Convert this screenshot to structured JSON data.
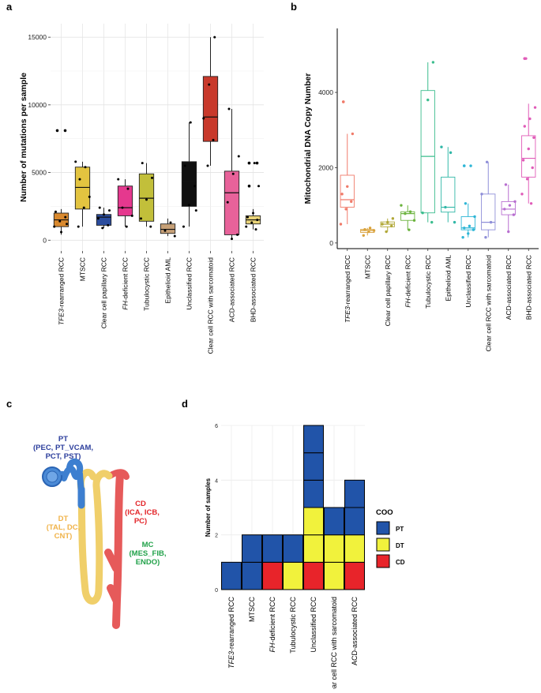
{
  "panel_labels": [
    "a",
    "b",
    "c",
    "d"
  ],
  "kidney": {
    "colors": {
      "PT": "#3d7fd0",
      "DT": "#f0cf6a",
      "CD": "#e65a5a",
      "PT_text": "#2c3e9c",
      "DT_text": "#f0b34a",
      "CD_text": "#e3262a",
      "MC_text": "#22a24a"
    },
    "labels": {
      "pt_title": "PT",
      "pt_line1": "(PEC, PT_VCAM,",
      "pt_line2": "PCT, PST)",
      "cd_title": "CD",
      "cd_line1": "(ICA, ICB,",
      "cd_line2": "PC)",
      "dt_title": "DT",
      "dt_line1": "(TAL, DC,",
      "dt_line2": "CNT)",
      "mc_title": "MC",
      "mc_line1": "(MES_FIB,",
      "mc_line2": "ENDO)"
    }
  },
  "chart_data": [
    {
      "id": "a",
      "type": "box",
      "ylabel": "Number of mutations per sample",
      "ylim": [
        -800,
        16000
      ],
      "yticks": [
        0,
        5000,
        10000,
        15000
      ],
      "grid": true,
      "categories": [
        {
          "pre": "TFE3",
          "rest": "-rearranged RCC"
        },
        {
          "pre": "",
          "rest": "MTSCC"
        },
        {
          "pre": "",
          "rest": "Clear cell papillary RCC"
        },
        {
          "pre": "FH",
          "rest": "-deficient RCC"
        },
        {
          "pre": "",
          "rest": "Tubulocystic RCC"
        },
        {
          "pre": "",
          "rest": "Epithelioid AML"
        },
        {
          "pre": "",
          "rest": "Unclassified RCC"
        },
        {
          "pre": "",
          "rest": "Clear cell RCC with sarcomatoid"
        },
        {
          "pre": "",
          "rest": "ACD-associated RCC"
        },
        {
          "pre": "",
          "rest": "BHD-associated RCC"
        }
      ],
      "colors": [
        "#d9892e",
        "#e3c440",
        "#2b4d9e",
        "#e5388e",
        "#c2bf3a",
        "#c7a178",
        "#101010",
        "#c8392b",
        "#e8629a",
        "#e8d378"
      ],
      "boxes": [
        {
          "whislo": 400,
          "q1": 1000,
          "med": 1500,
          "q3": 2000,
          "whishi": 2300,
          "outliers": [
            8100,
            8100
          ]
        },
        {
          "whislo": 1000,
          "q1": 2300,
          "med": 3900,
          "q3": 5400,
          "whishi": 5800,
          "outliers": []
        },
        {
          "whislo": 900,
          "q1": 1100,
          "med": 1700,
          "q3": 1900,
          "whishi": 2400,
          "outliers": []
        },
        {
          "whislo": 1000,
          "q1": 1800,
          "med": 2400,
          "q3": 4000,
          "whishi": 4500,
          "outliers": []
        },
        {
          "whislo": 1000,
          "q1": 1400,
          "med": 3100,
          "q3": 4900,
          "whishi": 5700,
          "outliers": []
        },
        {
          "whislo": 300,
          "q1": 500,
          "med": 800,
          "q3": 1200,
          "whishi": 1600,
          "outliers": []
        },
        {
          "whislo": 1000,
          "q1": 2500,
          "med": 4300,
          "q3": 5800,
          "whishi": 8700,
          "outliers": []
        },
        {
          "whislo": 5500,
          "q1": 7300,
          "med": 9100,
          "q3": 12100,
          "whishi": 15000,
          "outliers": []
        },
        {
          "whislo": 100,
          "q1": 400,
          "med": 3500,
          "q3": 5100,
          "whishi": 9700,
          "outliers": []
        },
        {
          "whislo": 800,
          "q1": 1200,
          "med": 1500,
          "q3": 1800,
          "whishi": 2300,
          "outliers": [
            5700,
            5700,
            4000
          ]
        }
      ],
      "points": [
        [
          1000,
          1400,
          1700,
          2100,
          600,
          1200
        ],
        [
          1000,
          2400,
          3200,
          4500,
          5400,
          5800
        ],
        [
          900,
          1100,
          1600,
          1900,
          2200,
          2400
        ],
        [
          1000,
          1800,
          2400,
          3800,
          4500
        ],
        [
          1000,
          1600,
          3000,
          4600,
          5700
        ],
        [
          300,
          700,
          1300
        ],
        [
          1000,
          2600,
          4000,
          5500,
          8700,
          2200
        ],
        [
          5500,
          7400,
          9000,
          11500,
          15000
        ],
        [
          100,
          400,
          2800,
          4900,
          6200,
          9700
        ],
        [
          800,
          1000,
          1300,
          1500,
          1700,
          2000,
          4000,
          5700,
          5700
        ]
      ]
    },
    {
      "id": "b",
      "type": "box",
      "ylabel": "Mitochondrial DNA Copy Number",
      "ylim": [
        -150,
        5700
      ],
      "yticks": [
        0,
        2000,
        4000
      ],
      "grid": false,
      "categories": [
        {
          "pre": "TFE3",
          "rest": "-rearranged RCC"
        },
        {
          "pre": "",
          "rest": "MTSCC"
        },
        {
          "pre": "",
          "rest": "Clear cell papillary RCC"
        },
        {
          "pre": "FH",
          "rest": "-deficient RCC"
        },
        {
          "pre": "",
          "rest": "Tubulocystic RCC"
        },
        {
          "pre": "",
          "rest": "Epithelioid AML"
        },
        {
          "pre": "",
          "rest": "Unclassified RCC"
        },
        {
          "pre": "",
          "rest": "Clear cell RCC with sarcomatoid"
        },
        {
          "pre": "",
          "rest": "ACD-associated RCC"
        },
        {
          "pre": "",
          "rest": "BHD-associated RCC"
        }
      ],
      "colors": [
        "#f07b6a",
        "#d9a23c",
        "#b1a838",
        "#6bb33d",
        "#3cbd8e",
        "#32b8a8",
        "#2fb6d6",
        "#8f8fd8",
        "#b86fd0",
        "#e05cb8"
      ],
      "boxes": [
        {
          "whislo": 500,
          "q1": 950,
          "med": 1150,
          "q3": 1800,
          "whishi": 2900,
          "outliers": [
            3750
          ]
        },
        {
          "whislo": 200,
          "q1": 280,
          "med": 330,
          "q3": 360,
          "whishi": 400,
          "outliers": []
        },
        {
          "whislo": 300,
          "q1": 430,
          "med": 500,
          "q3": 560,
          "whishi": 650,
          "outliers": []
        },
        {
          "whislo": 350,
          "q1": 600,
          "med": 780,
          "q3": 830,
          "whishi": 1000,
          "outliers": []
        },
        {
          "whislo": 550,
          "q1": 800,
          "med": 2300,
          "q3": 4050,
          "whishi": 4800,
          "outliers": []
        },
        {
          "whislo": 550,
          "q1": 820,
          "med": 950,
          "q3": 1750,
          "whishi": 2550,
          "outliers": []
        },
        {
          "whislo": 150,
          "q1": 350,
          "med": 400,
          "q3": 700,
          "whishi": 1050,
          "outliers": [
            2050
          ]
        },
        {
          "whislo": 150,
          "q1": 350,
          "med": 550,
          "q3": 1300,
          "whishi": 2150,
          "outliers": []
        },
        {
          "whislo": 300,
          "q1": 750,
          "med": 900,
          "q3": 1100,
          "whishi": 1550,
          "outliers": []
        },
        {
          "whislo": 1050,
          "q1": 1750,
          "med": 2250,
          "q3": 2850,
          "whishi": 3700,
          "outliers": [
            4900
          ]
        }
      ],
      "points": [
        [
          500,
          900,
          1100,
          1300,
          1500,
          2900,
          3750
        ],
        [
          200,
          300,
          330,
          360,
          400
        ],
        [
          300,
          450,
          500,
          550,
          650
        ],
        [
          350,
          600,
          780,
          830,
          1000
        ],
        [
          550,
          800,
          3800,
          4800
        ],
        [
          550,
          950,
          2400,
          2550
        ],
        [
          150,
          250,
          350,
          400,
          450,
          700,
          1050,
          2050
        ],
        [
          150,
          550,
          1300,
          2150
        ],
        [
          300,
          750,
          900,
          1000,
          1100,
          1550
        ],
        [
          1050,
          1300,
          1700,
          2000,
          2200,
          2500,
          2800,
          3100,
          3300,
          3600,
          4900
        ]
      ]
    },
    {
      "id": "d",
      "type": "stacked_tile",
      "ylabel": "Number of samples",
      "ylim": [
        0,
        6
      ],
      "yticks": [
        0,
        2,
        4,
        6
      ],
      "categories": [
        {
          "pre": "TFE3",
          "rest": "-rearranged RCC"
        },
        {
          "pre": "",
          "rest": "MTSCC"
        },
        {
          "pre": "FH",
          "rest": "-deficient RCC"
        },
        {
          "pre": "",
          "rest": "Tubulocystic RCC"
        },
        {
          "pre": "",
          "rest": "Unclassified RCC"
        },
        {
          "pre": "",
          "rest": "Clear cell RCC with sarcomatoid"
        },
        {
          "pre": "",
          "rest": "ACD-associated RCC"
        }
      ],
      "stacks": [
        [
          "PT"
        ],
        [
          "PT",
          "PT"
        ],
        [
          "CD",
          "PT"
        ],
        [
          "DT",
          "PT"
        ],
        [
          "CD",
          "DT",
          "DT",
          "PT",
          "PT",
          "PT"
        ],
        [
          "DT",
          "DT",
          "PT"
        ],
        [
          "CD",
          "DT",
          "PT",
          "PT"
        ]
      ],
      "legend": {
        "title": "COO",
        "position": "right",
        "entries": [
          {
            "key": "PT",
            "label": "PT",
            "color": "#2154a9"
          },
          {
            "key": "DT",
            "label": "DT",
            "color": "#f1f23c"
          },
          {
            "key": "CD",
            "label": "CD",
            "color": "#e8242a"
          }
        ]
      }
    }
  ]
}
